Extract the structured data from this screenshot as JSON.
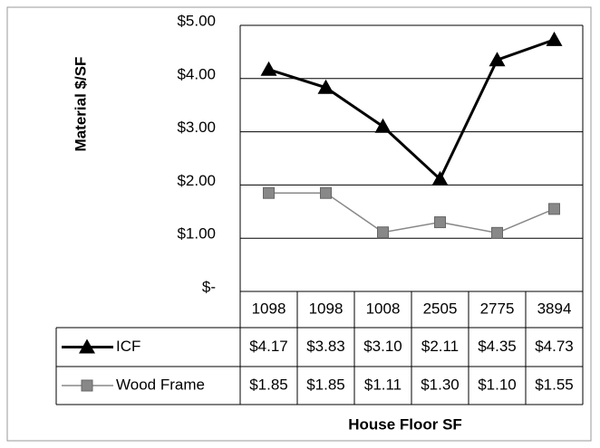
{
  "chart_data": {
    "type": "line",
    "ylabel": "Material $/SF",
    "xlabel": "House Floor SF",
    "categories": [
      "1098",
      "1098",
      "1008",
      "2505",
      "2775",
      "3894"
    ],
    "series": [
      {
        "name": "ICF",
        "color": "#000000",
        "marker": "triangle",
        "values": [
          4.17,
          3.83,
          3.1,
          2.11,
          4.35,
          4.73
        ],
        "value_labels": [
          "$4.17",
          "$3.83",
          "$3.10",
          "$2.11",
          "$4.35",
          "$4.73"
        ]
      },
      {
        "name": "Wood Frame",
        "color": "#888888",
        "marker": "square",
        "values": [
          1.85,
          1.85,
          1.11,
          1.3,
          1.1,
          1.55
        ],
        "value_labels": [
          "$1.85",
          "$1.85",
          "$1.11",
          "$1.30",
          "$1.10",
          "$1.55"
        ]
      }
    ],
    "ylim": [
      0,
      5
    ],
    "yticks": [
      {
        "value": 0,
        "label": "$-"
      },
      {
        "value": 1,
        "label": "$1.00"
      },
      {
        "value": 2,
        "label": "$2.00"
      },
      {
        "value": 3,
        "label": "$3.00"
      },
      {
        "value": 4,
        "label": "$4.00"
      },
      {
        "value": 5,
        "label": "$5.00"
      }
    ],
    "grid": true
  }
}
